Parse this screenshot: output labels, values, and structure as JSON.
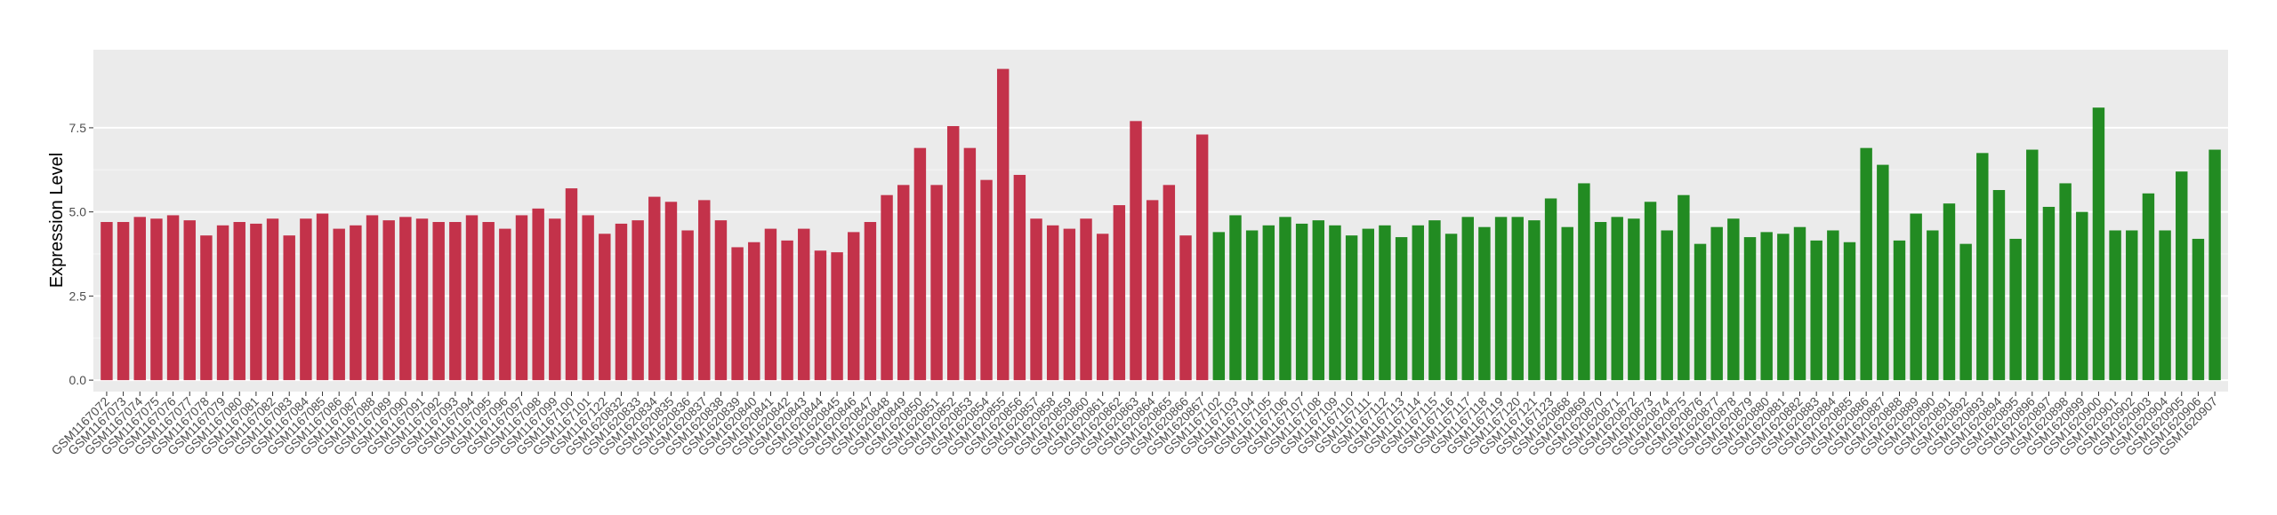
{
  "chart_data": {
    "type": "bar",
    "y_label": "Expression Level",
    "ylim": [
      -0.34,
      9.82
    ],
    "yticks": [
      {
        "value": 0,
        "label": "0.0"
      },
      {
        "value": 2.5,
        "label": "2.5"
      },
      {
        "value": 5,
        "label": "5.0"
      },
      {
        "value": 7.5,
        "label": "7.5"
      }
    ],
    "grid": true,
    "groups": [
      {
        "color": "#c3324a",
        "categories": [
          "GSM1167072",
          "GSM1167073",
          "GSM1167074",
          "GSM1167075",
          "GSM1167076",
          "GSM1167077",
          "GSM1167078",
          "GSM1167079",
          "GSM1167080",
          "GSM1167081",
          "GSM1167082",
          "GSM1167083",
          "GSM1167084",
          "GSM1167085",
          "GSM1167086",
          "GSM1167087",
          "GSM1167088",
          "GSM1167089",
          "GSM1167090",
          "GSM1167091",
          "GSM1167092",
          "GSM1167093",
          "GSM1167094",
          "GSM1167095",
          "GSM1167096",
          "GSM1167097",
          "GSM1167098",
          "GSM1167099",
          "GSM1167100",
          "GSM1167101",
          "GSM1167122",
          "GSM1620832",
          "GSM1620833",
          "GSM1620834",
          "GSM1620835",
          "GSM1620836",
          "GSM1620837",
          "GSM1620838",
          "GSM1620839",
          "GSM1620840",
          "GSM1620841",
          "GSM1620842",
          "GSM1620843",
          "GSM1620844",
          "GSM1620845",
          "GSM1620846",
          "GSM1620847",
          "GSM1620848",
          "GSM1620849",
          "GSM1620850",
          "GSM1620851",
          "GSM1620852",
          "GSM1620853",
          "GSM1620854",
          "GSM1620855",
          "GSM1620856",
          "GSM1620857",
          "GSM1620858",
          "GSM1620859",
          "GSM1620860",
          "GSM1620861",
          "GSM1620862",
          "GSM1620863",
          "GSM1620864",
          "GSM1620865",
          "GSM1620866",
          "GSM1620867"
        ],
        "values": [
          4.7,
          4.7,
          4.85,
          4.8,
          4.9,
          4.75,
          4.3,
          4.6,
          4.7,
          4.65,
          4.8,
          4.3,
          4.8,
          4.95,
          4.5,
          4.6,
          4.9,
          4.75,
          4.85,
          4.8,
          4.7,
          4.7,
          4.9,
          4.7,
          4.5,
          4.9,
          5.1,
          4.8,
          5.7,
          4.9,
          4.35,
          4.65,
          4.75,
          5.45,
          5.3,
          4.45,
          5.35,
          4.75,
          3.95,
          4.1,
          4.5,
          4.15,
          4.5,
          3.85,
          3.8,
          4.4,
          4.7,
          5.5,
          5.8,
          6.9,
          5.8,
          7.55,
          6.9,
          5.95,
          9.25,
          6.1,
          4.8,
          4.6,
          4.5,
          4.8,
          4.35,
          5.2,
          7.7,
          5.35,
          5.8,
          4.3,
          7.3
        ]
      },
      {
        "color": "#228b22",
        "categories": [
          "GSM1167102",
          "GSM1167103",
          "GSM1167104",
          "GSM1167105",
          "GSM1167106",
          "GSM1167107",
          "GSM1167108",
          "GSM1167109",
          "GSM1167110",
          "GSM1167111",
          "GSM1167112",
          "GSM1167113",
          "GSM1167114",
          "GSM1167115",
          "GSM1167116",
          "GSM1167117",
          "GSM1167118",
          "GSM1167119",
          "GSM1167120",
          "GSM1167121",
          "GSM1167123",
          "GSM1620868",
          "GSM1620869",
          "GSM1620870",
          "GSM1620871",
          "GSM1620872",
          "GSM1620873",
          "GSM1620874",
          "GSM1620875",
          "GSM1620876",
          "GSM1620877",
          "GSM1620878",
          "GSM1620879",
          "GSM1620880",
          "GSM1620881",
          "GSM1620882",
          "GSM1620883",
          "GSM1620884",
          "GSM1620885",
          "GSM1620886",
          "GSM1620887",
          "GSM1620888",
          "GSM1620889",
          "GSM1620890",
          "GSM1620891",
          "GSM1620892",
          "GSM1620893",
          "GSM1620894",
          "GSM1620895",
          "GSM1620896",
          "GSM1620897",
          "GSM1620898",
          "GSM1620899",
          "GSM1620900",
          "GSM1620901",
          "GSM1620902",
          "GSM1620903",
          "GSM1620904",
          "GSM1620905",
          "GSM1620906",
          "GSM1620907"
        ],
        "values": [
          4.4,
          4.9,
          4.45,
          4.6,
          4.85,
          4.65,
          4.75,
          4.6,
          4.3,
          4.5,
          4.6,
          4.25,
          4.6,
          4.75,
          4.35,
          4.85,
          4.55,
          4.85,
          4.85,
          4.75,
          5.4,
          4.55,
          5.85,
          4.7,
          4.85,
          4.8,
          5.3,
          4.45,
          5.5,
          4.05,
          4.55,
          4.8,
          4.25,
          4.4,
          4.35,
          4.55,
          4.15,
          4.45,
          4.1,
          6.9,
          6.4,
          4.15,
          4.95,
          4.45,
          5.25,
          4.05,
          6.75,
          5.65,
          4.2,
          6.85,
          5.15,
          5.85,
          5.0,
          8.1,
          4.45,
          4.45,
          5.55,
          4.45,
          6.2,
          4.2,
          6.85
        ]
      }
    ]
  }
}
